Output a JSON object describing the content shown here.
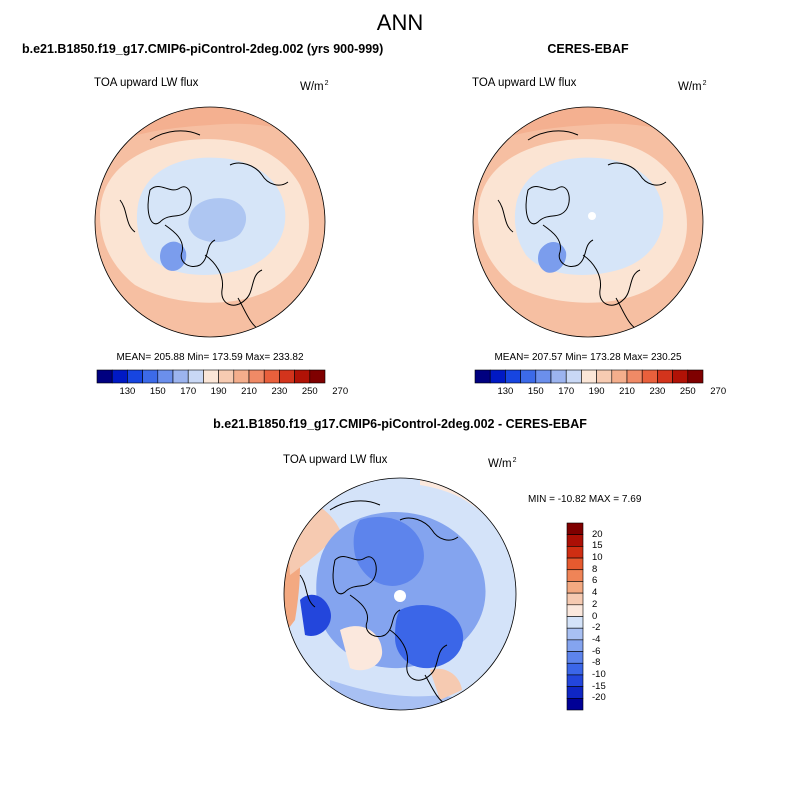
{
  "page": {
    "title": "ANN"
  },
  "palette": {
    "abs": [
      "#000080",
      "#0019c4",
      "#1745e0",
      "#3c6ae8",
      "#6b8fec",
      "#9cb4ef",
      "#c9d8f5",
      "#fbe6d7",
      "#f7cbb2",
      "#f4ae8c",
      "#f08a66",
      "#e9603c",
      "#d3341c",
      "#b11206",
      "#7f0000"
    ],
    "diff": [
      "#000096",
      "#0f26c4",
      "#2346dc",
      "#3b66e8",
      "#5d84ec",
      "#84a4ef",
      "#a8c0f3",
      "#d4e3f9",
      "#fbe8dd",
      "#f6cab1",
      "#f3a981",
      "#ef8457",
      "#e65a2f",
      "#cf2e12",
      "#ab0f05",
      "#7f0000"
    ]
  },
  "panels": {
    "model": {
      "title": "b.e21.B1850.f19_g17.CMIP6-piControl-2deg.002 (yrs 900-999)",
      "variable": "TOA upward LW flux",
      "units_base": "W/m",
      "units_exp": "2",
      "stats": "MEAN= 205.88  Min= 173.59  Max= 233.82"
    },
    "obs": {
      "title": "CERES-EBAF",
      "variable": "TOA upward LW flux",
      "units_base": "W/m",
      "units_exp": "2",
      "stats": "MEAN= 207.57  Min= 173.28  Max= 230.25"
    },
    "diff": {
      "title": "b.e21.B1850.f19_g17.CMIP6-piControl-2deg.002 - CERES-EBAF",
      "variable": "TOA upward LW flux",
      "units_base": "W/m",
      "units_exp": "2",
      "stats": "MIN = -10.82 MAX =   7.69"
    }
  },
  "colorbars": {
    "abs_ticks": [
      "130",
      "150",
      "170",
      "190",
      "210",
      "230",
      "250",
      "270"
    ],
    "diff_ticks": [
      "20",
      "15",
      "10",
      "8",
      "6",
      "4",
      "2",
      "0",
      "-2",
      "-4",
      "-6",
      "-8",
      "-10",
      "-15",
      "-20"
    ]
  }
}
